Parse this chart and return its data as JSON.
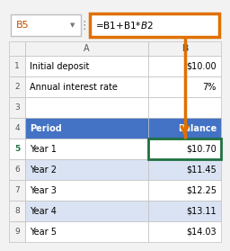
{
  "cell_ref": "B5",
  "formula": "=B1+B1*$B$2",
  "rows": [
    {
      "row": 1,
      "col_a": "Initial deposit",
      "col_b": "$10.00"
    },
    {
      "row": 2,
      "col_a": "Annual interest rate",
      "col_b": "7%"
    },
    {
      "row": 3,
      "col_a": "",
      "col_b": ""
    },
    {
      "row": 4,
      "col_a": "Period",
      "col_b": "Balance"
    },
    {
      "row": 5,
      "col_a": "Year 1",
      "col_b": "$10.70"
    },
    {
      "row": 6,
      "col_a": "Year 2",
      "col_b": "$11.45"
    },
    {
      "row": 7,
      "col_a": "Year 3",
      "col_b": "$12.25"
    },
    {
      "row": 8,
      "col_a": "Year 4",
      "col_b": "$13.11"
    },
    {
      "row": 9,
      "col_a": "Year 5",
      "col_b": "$14.03"
    }
  ],
  "header_bg": "#4472C4",
  "header_fg": "#FFFFFF",
  "alt_row_bg": "#DAE3F3",
  "normal_row_bg": "#FFFFFF",
  "formula_bar_border": "#E07000",
  "arrow_color": "#E07000",
  "selected_border": "#1F7040",
  "col_b_header_color": "#1F5C8A",
  "grid_color": "#C0C0C0",
  "top_bg": "#F2F2F2",
  "cell_name_color": "#C05000"
}
